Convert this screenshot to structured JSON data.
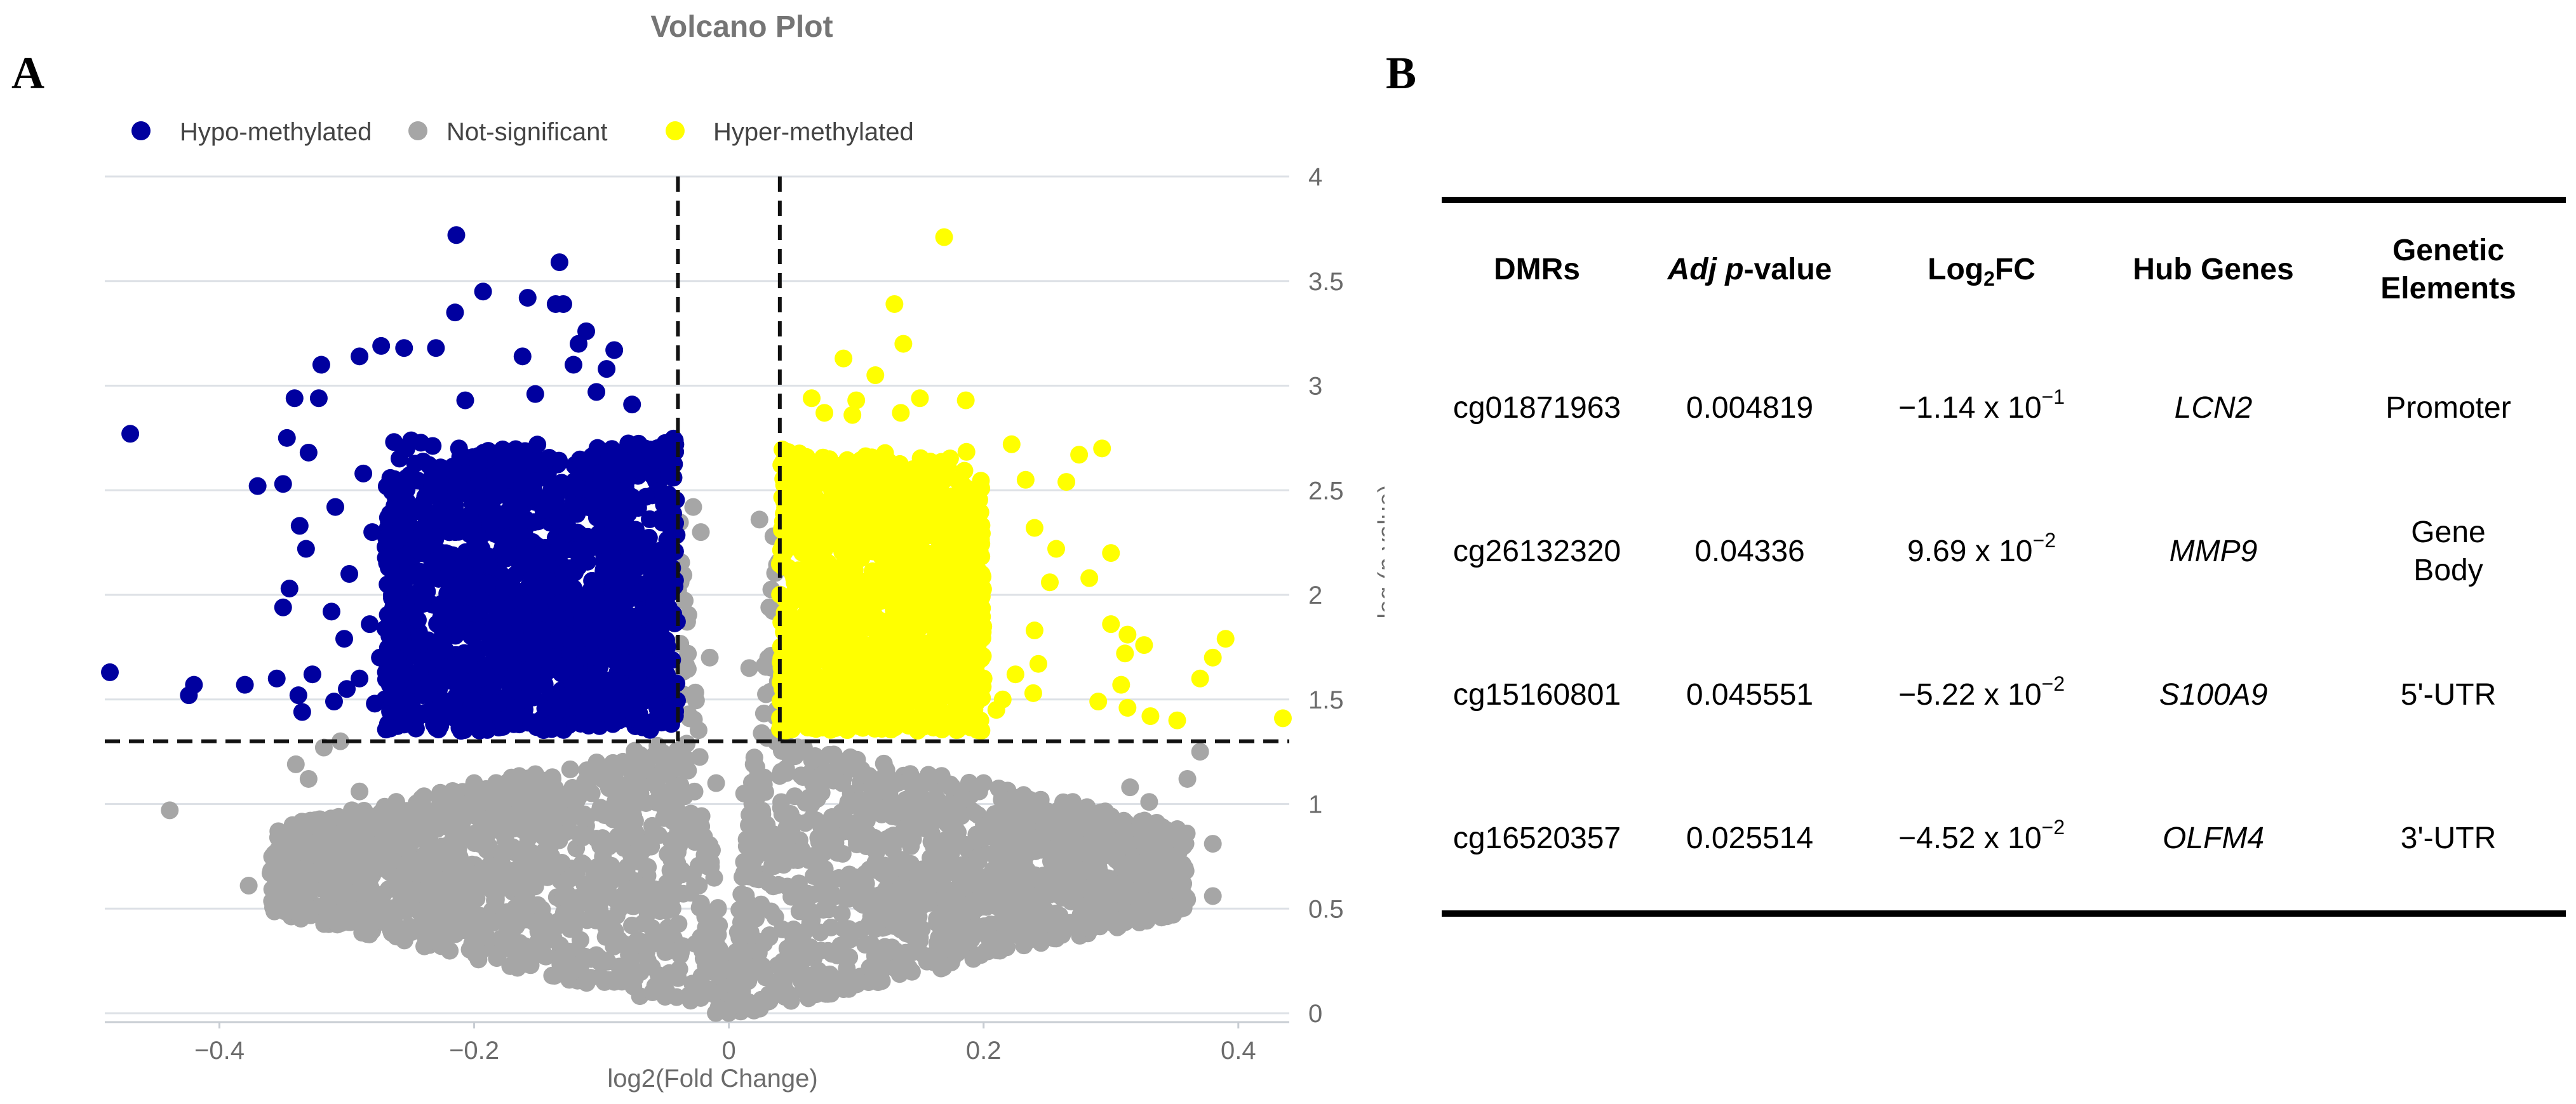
{
  "panels": {
    "a": "A",
    "b": "B"
  },
  "chart_data": {
    "type": "scatter",
    "title": "Volcano Plot",
    "xlabel": "log2(Fold Change)",
    "ylabel_parts": [
      "−log (",
      "p",
      "-value)"
    ],
    "xlim": [
      -0.49,
      0.44
    ],
    "ylim": [
      0,
      4
    ],
    "xticks": [
      -0.4,
      -0.2,
      0,
      0.2,
      0.4
    ],
    "xtick_labels": [
      "−0.4",
      "−0.2",
      "0",
      "0.2",
      "0.4"
    ],
    "yticks": [
      0,
      0.5,
      1,
      1.5,
      2,
      2.5,
      3,
      3.5,
      4
    ],
    "ytick_labels": [
      "0",
      "0.5",
      "1",
      "1.5",
      "2",
      "2.5",
      "3",
      "3.5",
      "4"
    ],
    "thresholds": {
      "x": [
        -0.04,
        0.04
      ],
      "y": 1.3
    },
    "legend": {
      "position": "top-left",
      "orientation": "horizontal"
    },
    "colors": {
      "hypo": "#00009f",
      "not_significant": "#a6a6a6",
      "hyper": "#ffff00",
      "grid": "#dde1e6",
      "threshold": "#111111",
      "axis_text": "#6b6b6b",
      "title": "#757575"
    },
    "series": [
      {
        "name": "Hypo-methylated",
        "color": "#00009f",
        "fill_region": {
          "x_range": [
            -0.27,
            -0.04
          ],
          "y_range": [
            1.35,
            2.75
          ]
        },
        "points": [
          [
            -0.214,
            3.72
          ],
          [
            -0.133,
            3.59
          ],
          [
            -0.193,
            3.45
          ],
          [
            -0.158,
            3.42
          ],
          [
            -0.136,
            3.39
          ],
          [
            -0.13,
            3.39
          ],
          [
            -0.215,
            3.35
          ],
          [
            -0.112,
            3.26
          ],
          [
            -0.32,
            3.1
          ],
          [
            -0.273,
            3.19
          ],
          [
            -0.255,
            3.18
          ],
          [
            -0.23,
            3.18
          ],
          [
            -0.29,
            3.14
          ],
          [
            -0.162,
            3.14
          ],
          [
            -0.118,
            3.2
          ],
          [
            -0.09,
            3.17
          ],
          [
            -0.122,
            3.1
          ],
          [
            -0.096,
            3.08
          ],
          [
            -0.341,
            2.94
          ],
          [
            -0.322,
            2.94
          ],
          [
            -0.207,
            2.93
          ],
          [
            -0.152,
            2.96
          ],
          [
            -0.104,
            2.97
          ],
          [
            -0.076,
            2.91
          ],
          [
            -0.47,
            2.77
          ],
          [
            -0.347,
            2.75
          ],
          [
            -0.33,
            2.68
          ],
          [
            -0.35,
            2.53
          ],
          [
            -0.37,
            2.52
          ],
          [
            -0.337,
            2.33
          ],
          [
            -0.332,
            2.22
          ],
          [
            -0.345,
            2.03
          ],
          [
            -0.35,
            1.94
          ],
          [
            -0.486,
            1.63
          ],
          [
            -0.42,
            1.57
          ],
          [
            -0.424,
            1.52
          ],
          [
            -0.38,
            1.57
          ],
          [
            -0.355,
            1.6
          ],
          [
            -0.327,
            1.62
          ],
          [
            -0.338,
            1.52
          ],
          [
            -0.335,
            1.44
          ],
          [
            -0.3,
            1.55
          ],
          [
            -0.31,
            1.49
          ],
          [
            -0.29,
            1.6
          ],
          [
            -0.278,
            1.48
          ],
          [
            -0.26,
            1.44
          ],
          [
            -0.302,
            1.79
          ],
          [
            -0.312,
            1.92
          ],
          [
            -0.298,
            2.1
          ],
          [
            -0.309,
            2.42
          ],
          [
            -0.287,
            2.58
          ],
          [
            -0.28,
            2.3
          ],
          [
            -0.268,
            2.05
          ],
          [
            -0.282,
            1.86
          ],
          [
            -0.274,
            1.7
          ],
          [
            -0.26,
            1.55
          ],
          [
            -0.255,
            1.38
          ],
          [
            -0.246,
            1.43
          ],
          [
            -0.24,
            1.52
          ],
          [
            -0.228,
            1.41
          ]
        ]
      },
      {
        "name": "Not-significant",
        "color": "#a6a6a6",
        "points": [
          [
            -0.439,
            0.97
          ],
          [
            -0.377,
            0.61
          ],
          [
            -0.34,
            1.19
          ],
          [
            -0.33,
            1.12
          ],
          [
            -0.29,
            1.06
          ],
          [
            -0.27,
            0.86
          ],
          [
            -0.25,
            0.74
          ],
          [
            -0.23,
            0.63
          ],
          [
            -0.21,
            0.53
          ],
          [
            -0.18,
            0.44
          ],
          [
            -0.15,
            0.34
          ],
          [
            -0.12,
            0.22
          ],
          [
            -0.09,
            0.15
          ],
          [
            -0.06,
            0.1
          ],
          [
            -0.03,
            0.06
          ],
          [
            0,
            0.02
          ],
          [
            0.03,
            0.06
          ],
          [
            0.06,
            0.11
          ],
          [
            0.09,
            0.17
          ],
          [
            0.12,
            0.26
          ],
          [
            0.15,
            0.36
          ],
          [
            0.18,
            0.45
          ],
          [
            0.21,
            0.55
          ],
          [
            0.24,
            0.66
          ],
          [
            0.27,
            0.78
          ],
          [
            0.3,
            0.9
          ],
          [
            0.33,
            1.01
          ],
          [
            0.36,
            1.12
          ],
          [
            0.38,
            0.81
          ],
          [
            0.38,
            0.56
          ],
          [
            0.37,
            1.25
          ],
          [
            0.315,
            1.08
          ],
          [
            0.292,
            0.96
          ],
          [
            0.27,
            1.01
          ],
          [
            0.262,
            0.74
          ],
          [
            0.26,
            0.58
          ],
          [
            -0.296,
            0.97
          ],
          [
            -0.318,
            1.27
          ],
          [
            -0.305,
            1.3
          ],
          [
            -0.022,
            2.3
          ],
          [
            -0.028,
            2.42
          ],
          [
            0.024,
            2.36
          ],
          [
            0.035,
            2.28
          ],
          [
            -0.015,
            1.7
          ],
          [
            0.016,
            1.65
          ],
          [
            -0.01,
            1.1
          ],
          [
            0.012,
            1.05
          ],
          [
            -0.2,
            1.1
          ],
          [
            0.2,
            1.1
          ],
          [
            -0.12,
            0.95
          ],
          [
            0.12,
            0.95
          ]
        ]
      },
      {
        "name": "Hyper-methylated",
        "color": "#ffff00",
        "fill_region": {
          "x_range": [
            0.04,
            0.2
          ],
          "y_range": [
            1.35,
            2.7
          ]
        },
        "points": [
          [
            0.169,
            3.71
          ],
          [
            0.13,
            3.39
          ],
          [
            0.137,
            3.2
          ],
          [
            0.09,
            3.13
          ],
          [
            0.115,
            3.05
          ],
          [
            0.065,
            2.94
          ],
          [
            0.1,
            2.93
          ],
          [
            0.15,
            2.94
          ],
          [
            0.186,
            2.93
          ],
          [
            0.075,
            2.87
          ],
          [
            0.097,
            2.86
          ],
          [
            0.135,
            2.87
          ],
          [
            0.293,
            2.7
          ],
          [
            0.275,
            2.67
          ],
          [
            0.265,
            2.54
          ],
          [
            0.233,
            2.55
          ],
          [
            0.222,
            2.72
          ],
          [
            0.24,
            2.32
          ],
          [
            0.257,
            2.22
          ],
          [
            0.252,
            2.06
          ],
          [
            0.24,
            1.83
          ],
          [
            0.243,
            1.67
          ],
          [
            0.239,
            1.53
          ],
          [
            0.3,
            2.2
          ],
          [
            0.283,
            2.08
          ],
          [
            0.3,
            1.86
          ],
          [
            0.313,
            1.81
          ],
          [
            0.311,
            1.72
          ],
          [
            0.308,
            1.57
          ],
          [
            0.326,
            1.76
          ],
          [
            0.39,
            1.79
          ],
          [
            0.38,
            1.7
          ],
          [
            0.37,
            1.6
          ],
          [
            0.352,
            1.4
          ],
          [
            0.331,
            1.42
          ],
          [
            0.313,
            1.46
          ],
          [
            0.29,
            1.49
          ],
          [
            0.435,
            1.41
          ],
          [
            0.2,
            1.6
          ],
          [
            0.21,
            1.45
          ],
          [
            0.215,
            1.5
          ],
          [
            0.225,
            1.62
          ]
        ]
      }
    ]
  },
  "table": {
    "headers": {
      "dmrs": "DMRs",
      "adj_p_italic": "Adj p",
      "adj_p_rest": "-value",
      "log2fc_main": "Log",
      "log2fc_sub": "2",
      "log2fc_rest": "FC",
      "hub_genes": "Hub Genes",
      "genetic_line1": "Genetic",
      "genetic_line2": "Elements"
    },
    "rows": [
      {
        "dmr": "cg01871963",
        "adj_p": "0.004819",
        "fc_base": "−1.14 x 10",
        "fc_exp": "−1",
        "gene": "LCN2",
        "element_line1": "Promoter",
        "element_line2": ""
      },
      {
        "dmr": "cg26132320",
        "adj_p": "0.04336",
        "fc_base": "9.69 x 10",
        "fc_exp": "−2",
        "gene": "MMP9",
        "element_line1": "Gene",
        "element_line2": "Body"
      },
      {
        "dmr": "cg15160801",
        "adj_p": "0.045551",
        "fc_base": "−5.22 x 10",
        "fc_exp": "−2",
        "gene": "S100A9",
        "element_line1": "5'-UTR",
        "element_line2": ""
      },
      {
        "dmr": "cg16520357",
        "adj_p": "0.025514",
        "fc_base": "−4.52 x 10",
        "fc_exp": "−2",
        "gene": "OLFM4",
        "element_line1": "3'-UTR",
        "element_line2": ""
      }
    ]
  }
}
